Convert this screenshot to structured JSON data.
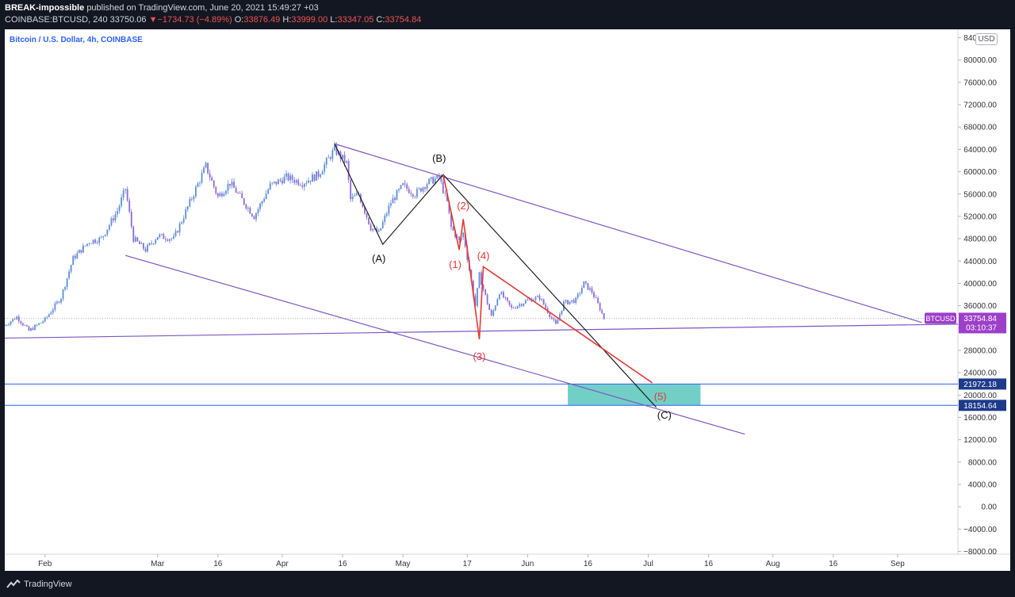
{
  "header": {
    "author": "BREAK-impossible",
    "published": "published on TradingView.com, June 20, 2021 15:49:27 +03",
    "symbol": "COINBASE:BTCUSD, 240",
    "price": "33750.06",
    "change_arrow": "▼",
    "change": "−1734.73 (−4.89%)",
    "o_label": "O:",
    "o_value": "33876.49",
    "h_label": "H:",
    "h_value": "33999.00",
    "l_label": "L:",
    "l_value": "33347.05",
    "c_label": "C:",
    "c_value": "33754.84"
  },
  "chart_title": "Bitcoin / U.S. Dollar, 4h, COINBASE",
  "currency_badge": "USD",
  "footer": {
    "brand": "TradingView"
  },
  "colors": {
    "up": "#26a69a",
    "down": "#ef5350",
    "candle_up": "#5b8fd6",
    "candle_down": "#8e6bd4",
    "channel": "#7e57c2",
    "wave_red": "#e53935",
    "wave_black": "#111111",
    "zone": "#4fc3b8",
    "price_tag": "#9c3fc9",
    "level_line": "#2962ff"
  },
  "chart_data": {
    "type": "candlestick",
    "symbol": "BTCUSD",
    "interval": "4h",
    "x_axis": {
      "range": [
        "2021-01-22",
        "2021-09-16"
      ],
      "ticks": [
        {
          "date": "2021-02-01",
          "label": "Feb"
        },
        {
          "date": "2021-03-01",
          "label": "Mar"
        },
        {
          "date": "2021-03-16",
          "label": "16"
        },
        {
          "date": "2021-04-01",
          "label": "Apr"
        },
        {
          "date": "2021-04-16",
          "label": "16"
        },
        {
          "date": "2021-05-01",
          "label": "May"
        },
        {
          "date": "2021-05-17",
          "label": "17"
        },
        {
          "date": "2021-06-01",
          "label": "Jun"
        },
        {
          "date": "2021-06-16",
          "label": "16"
        },
        {
          "date": "2021-07-01",
          "label": "Jul"
        },
        {
          "date": "2021-07-16",
          "label": "16"
        },
        {
          "date": "2021-08-01",
          "label": "Aug"
        },
        {
          "date": "2021-08-16",
          "label": "16"
        },
        {
          "date": "2021-09-01",
          "label": "Sep"
        }
      ]
    },
    "y_axis": {
      "range": [
        -8500,
        85500
      ],
      "ticks": [
        -8000,
        -4000,
        0,
        4000,
        8000,
        12000,
        16000,
        20000,
        24000,
        28000,
        32000,
        36000,
        40000,
        44000,
        48000,
        52000,
        56000,
        60000,
        64000,
        68000,
        72000,
        76000,
        80000,
        84000
      ],
      "tick_labels": [
        "−8000.00",
        "−4000.00",
        "0.00",
        "4000.00",
        "8000.00",
        "12000.00",
        "16000.00",
        "20000.00",
        "24000.00",
        "28000.00",
        "32000.00",
        "36000.00",
        "40000.00",
        "44000.00",
        "48000.00",
        "52000.00",
        "56000.00",
        "60000.00",
        "64000.00",
        "68000.00",
        "72000.00",
        "76000.00",
        "80000.00",
        "84000.00"
      ]
    },
    "price_path": [
      [
        "2021-01-22",
        32500
      ],
      [
        "2021-01-25",
        34000
      ],
      [
        "2021-01-28",
        31500
      ],
      [
        "2021-02-01",
        33500
      ],
      [
        "2021-02-05",
        37500
      ],
      [
        "2021-02-08",
        44500
      ],
      [
        "2021-02-12",
        47500
      ],
      [
        "2021-02-15",
        48000
      ],
      [
        "2021-02-19",
        53000
      ],
      [
        "2021-02-21",
        57000
      ],
      [
        "2021-02-23",
        48000
      ],
      [
        "2021-02-26",
        46000
      ],
      [
        "2021-03-01",
        48500
      ],
      [
        "2021-03-05",
        48000
      ],
      [
        "2021-03-09",
        54500
      ],
      [
        "2021-03-13",
        61000
      ],
      [
        "2021-03-16",
        55500
      ],
      [
        "2021-03-19",
        58000
      ],
      [
        "2021-03-25",
        52000
      ],
      [
        "2021-03-29",
        57500
      ],
      [
        "2021-04-02",
        59000
      ],
      [
        "2021-04-06",
        58000
      ],
      [
        "2021-04-10",
        59500
      ],
      [
        "2021-04-14",
        64000
      ],
      [
        "2021-04-17",
        61500
      ],
      [
        "2021-04-18",
        55000
      ],
      [
        "2021-04-20",
        56000
      ],
      [
        "2021-04-23",
        50000
      ],
      [
        "2021-04-25",
        49000
      ],
      [
        "2021-04-28",
        54500
      ],
      [
        "2021-05-01",
        57500
      ],
      [
        "2021-05-04",
        56000
      ],
      [
        "2021-05-07",
        58000
      ],
      [
        "2021-05-10",
        59000
      ],
      [
        "2021-05-12",
        54500
      ],
      [
        "2021-05-13",
        50000
      ],
      [
        "2021-05-15",
        47500
      ],
      [
        "2021-05-16",
        49000
      ],
      [
        "2021-05-19",
        36000
      ],
      [
        "2021-05-20",
        41500
      ],
      [
        "2021-05-23",
        34000
      ],
      [
        "2021-05-25",
        38500
      ],
      [
        "2021-05-28",
        35500
      ],
      [
        "2021-06-01",
        37000
      ],
      [
        "2021-06-04",
        37500
      ],
      [
        "2021-06-08",
        32500
      ],
      [
        "2021-06-10",
        36500
      ],
      [
        "2021-06-13",
        37000
      ],
      [
        "2021-06-15",
        40000
      ],
      [
        "2021-06-17",
        38500
      ],
      [
        "2021-06-19",
        35500
      ],
      [
        "2021-06-20",
        33754.84
      ]
    ],
    "last_price": {
      "value": 33754.84,
      "label": "33754.84",
      "symbol_tag": "BTCUSD",
      "countdown": "03:10:37"
    },
    "horizontal_levels": [
      {
        "value": 21972.18,
        "label": "21972.18"
      },
      {
        "value": 18154.64,
        "label": "18154.64"
      }
    ],
    "target_zone": {
      "x_start": "2021-06-11",
      "x_end": "2021-07-14",
      "y_low": 18154.64,
      "y_high": 21972.18
    },
    "trendlines": [
      {
        "name": "channel-upper",
        "from": [
          "2021-04-14",
          65000
        ],
        "to": [
          "2021-09-07",
          33000
        ]
      },
      {
        "name": "channel-lower",
        "from": [
          "2021-02-21",
          45000
        ],
        "to": [
          "2021-07-25",
          13000
        ]
      },
      {
        "name": "support",
        "from": [
          "2021-01-22",
          30200
        ],
        "to": [
          "2021-09-16",
          32700
        ]
      }
    ],
    "wave_lines": [
      {
        "name": "corrective-abc",
        "points": [
          [
            "2021-04-14",
            65000
          ],
          [
            "2021-04-26",
            47000
          ],
          [
            "2021-05-11",
            59500
          ],
          [
            "2021-07-03",
            17800
          ]
        ]
      },
      {
        "name": "impulse-12345",
        "points": [
          [
            "2021-05-11",
            59500
          ],
          [
            "2021-05-15",
            46000
          ],
          [
            "2021-05-16",
            51500
          ],
          [
            "2021-05-20",
            30000
          ],
          [
            "2021-05-21",
            43000
          ],
          [
            "2021-07-02",
            22200
          ]
        ]
      }
    ],
    "wave_labels": [
      {
        "label": "(A)",
        "date": "2021-04-25",
        "value": 44500,
        "color": "black"
      },
      {
        "label": "(B)",
        "date": "2021-05-10",
        "value": 62500,
        "color": "black"
      },
      {
        "label": "(C)",
        "date": "2021-07-05",
        "value": 16500,
        "color": "black"
      },
      {
        "label": "(1)",
        "date": "2021-05-14",
        "value": 43500,
        "color": "red"
      },
      {
        "label": "(2)",
        "date": "2021-05-16",
        "value": 54000,
        "color": "red"
      },
      {
        "label": "(3)",
        "date": "2021-05-20",
        "value": 27000,
        "color": "red"
      },
      {
        "label": "(4)",
        "date": "2021-05-21",
        "value": 45000,
        "color": "red"
      },
      {
        "label": "(5)",
        "date": "2021-07-04",
        "value": 19800,
        "color": "red"
      }
    ]
  }
}
